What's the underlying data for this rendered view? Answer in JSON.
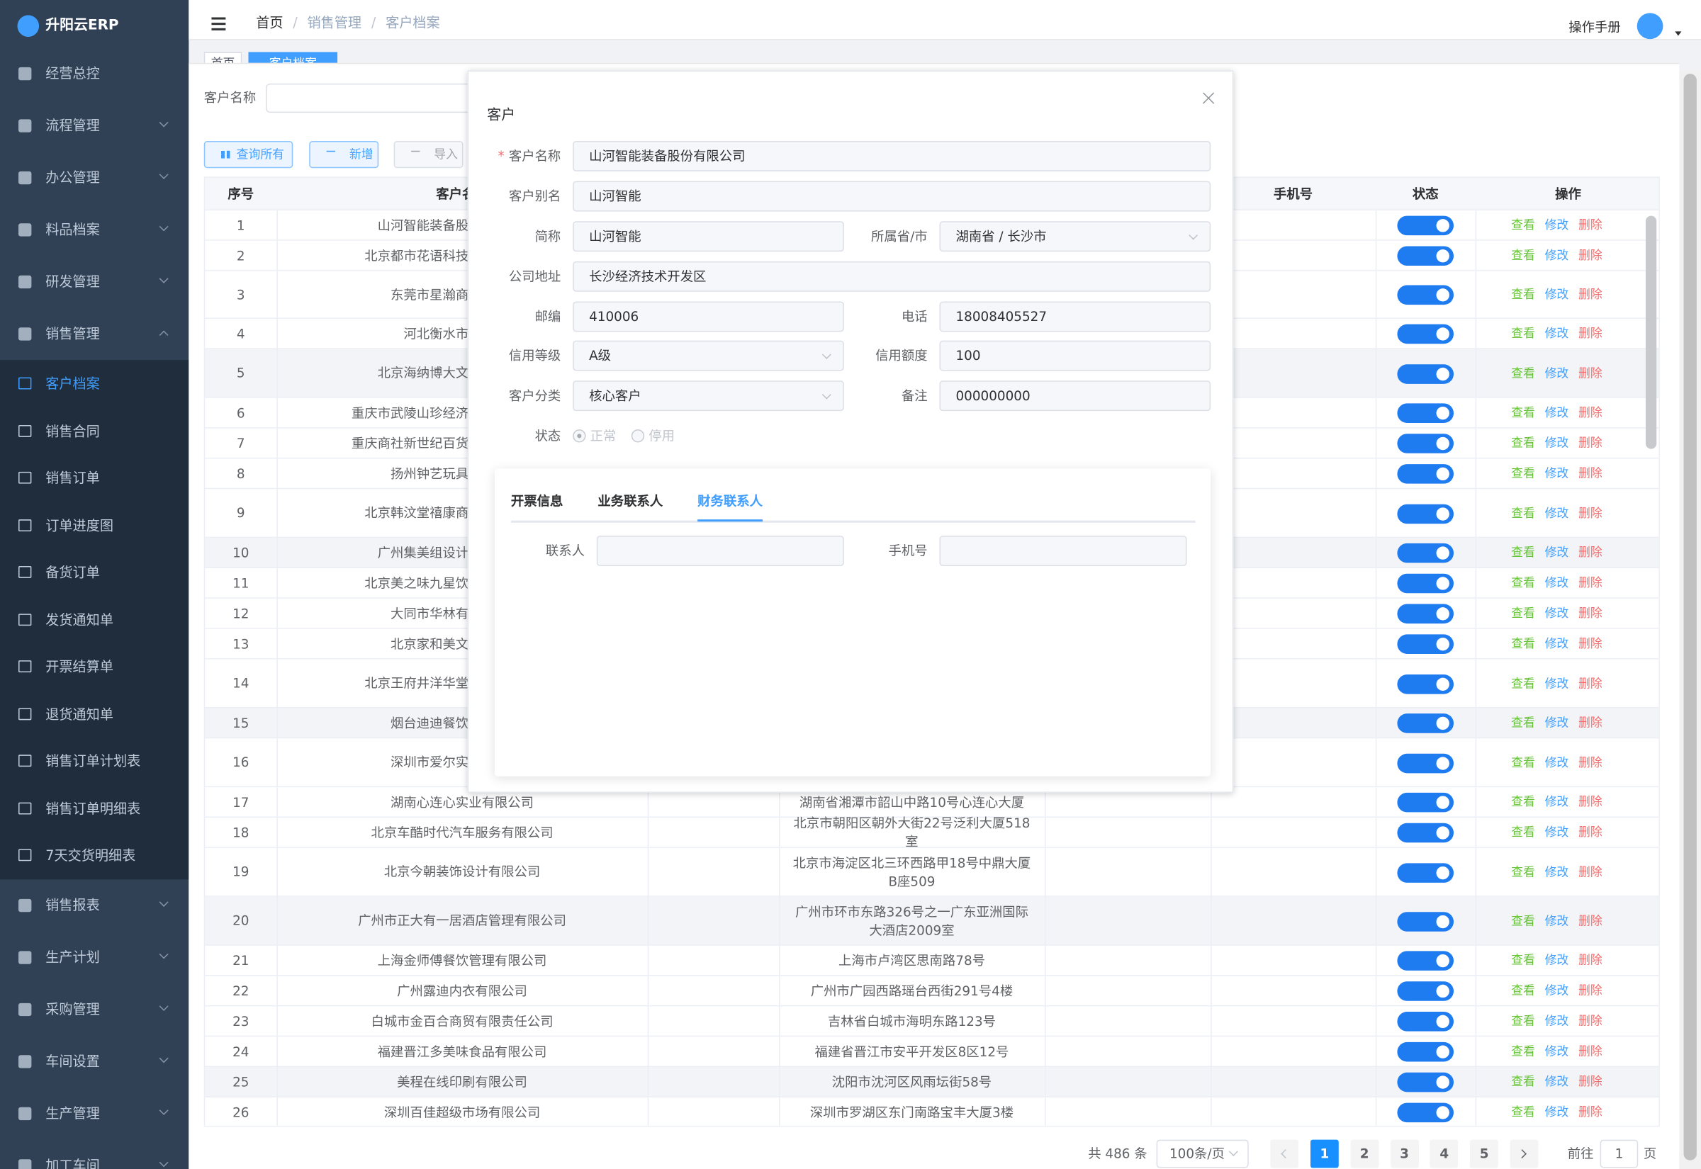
{
  "app_name": "升阳云ERP",
  "sidebar": {
    "items": [
      {
        "label": "经营总控"
      },
      {
        "label": "流程管理",
        "expandable": true
      },
      {
        "label": "办公管理",
        "expandable": true
      },
      {
        "label": "料品档案",
        "expandable": true
      },
      {
        "label": "研发管理",
        "expandable": true
      },
      {
        "label": "销售管理",
        "expandable": true,
        "expanded": true,
        "children": [
          {
            "label": "客户档案",
            "active": true
          },
          {
            "label": "销售合同"
          },
          {
            "label": "销售订单"
          },
          {
            "label": "订单进度图"
          },
          {
            "label": "备货订单"
          },
          {
            "label": "发货通知单"
          },
          {
            "label": "开票结算单"
          },
          {
            "label": "退货通知单"
          },
          {
            "label": "销售订单计划表"
          },
          {
            "label": "销售订单明细表"
          },
          {
            "label": "7天交货明细表"
          }
        ]
      },
      {
        "label": "销售报表",
        "expandable": true
      },
      {
        "label": "生产计划",
        "expandable": true
      },
      {
        "label": "采购管理",
        "expandable": true
      },
      {
        "label": "车间设置",
        "expandable": true
      },
      {
        "label": "生产管理",
        "expandable": true
      },
      {
        "label": "加工车间",
        "expandable": true
      }
    ]
  },
  "header": {
    "breadcrumb": [
      "首页",
      "销售管理",
      "客户档案"
    ],
    "manual": "操作手册"
  },
  "tabs": [
    "首页",
    "客户档案"
  ],
  "search": {
    "label": "客户名称",
    "buttons": [
      "查询所有",
      "新增",
      "导入"
    ]
  },
  "table": {
    "headers": [
      "序号",
      "客户名称",
      "手机号",
      "状态",
      "操作"
    ],
    "actions": [
      "查看",
      "修改",
      "删除"
    ],
    "rows": [
      {
        "index": 1,
        "name": "山河智能装备股"
      },
      {
        "index": 2,
        "name": "北京都市花语科技"
      },
      {
        "index": 3,
        "name": "东莞市星瀚商"
      },
      {
        "index": 4,
        "name": "河北衡水市"
      },
      {
        "index": 5,
        "name": "北京海纳博大文"
      },
      {
        "index": 6,
        "name": "重庆市武陵山珍经济"
      },
      {
        "index": 7,
        "name": "重庆商社新世纪百货"
      },
      {
        "index": 8,
        "name": "扬州钟艺玩具"
      },
      {
        "index": 9,
        "name": "北京韩汶堂禧康商"
      },
      {
        "index": 10,
        "name": "广州集美组设计"
      },
      {
        "index": 11,
        "name": "北京美之味九星饮"
      },
      {
        "index": 12,
        "name": "大同市华林有"
      },
      {
        "index": 13,
        "name": "北京家和美文"
      },
      {
        "index": 14,
        "name": "北京王府井洋华堂"
      },
      {
        "index": 15,
        "name": "烟台迪迪餐饮"
      },
      {
        "index": 16,
        "name": "深圳市爱尔实"
      },
      {
        "index": 17,
        "name": "湖南心连心实业有限公司",
        "address": "湖南省湘潭市韶山中路10号心连心大厦"
      },
      {
        "index": 18,
        "name": "北京车酷时代汽车服务有限公司",
        "address": "北京市朝阳区朝外大街22号泛利大厦518室"
      },
      {
        "index": 19,
        "name": "北京今朝装饰设计有限公司",
        "address": "北京市海淀区北三环西路甲18号中鼎大厦B座509"
      },
      {
        "index": 20,
        "name": "广州市正大有一居酒店管理有限公司",
        "address": "广州市环市东路326号之一广东亚洲国际大酒店2009室"
      },
      {
        "index": 21,
        "name": "上海金师傅餐饮管理有限公司",
        "address": "上海市卢湾区思南路78号"
      },
      {
        "index": 22,
        "name": "广州露迪内衣有限公司",
        "address": "广州市广园西路瑶台西街291号4楼"
      },
      {
        "index": 23,
        "name": "白城市金百合商贸有限责任公司",
        "address": "吉林省白城市海明东路123号"
      },
      {
        "index": 24,
        "name": "福建晋江多美味食品有限公司",
        "address": "福建省晋江市安平开发区8区12号"
      },
      {
        "index": 25,
        "name": "美程在线印刷有限公司",
        "address": "沈阳市沈河区风雨坛街58号"
      },
      {
        "index": 26,
        "name": "深圳百佳超级市场有限公司",
        "address": "深圳市罗湖区东门南路宝丰大厦3楼"
      }
    ]
  },
  "pagination": {
    "total": "共 486 条",
    "page_size": "100条/页",
    "pages": [
      1,
      2,
      3,
      4,
      5
    ],
    "current": 1,
    "goto_label": "前往",
    "goto_value": "1",
    "goto_suffix": "页"
  },
  "modal": {
    "title": "客户",
    "fields": [
      [
        {
          "label": "客户名称",
          "value": "山河智能装备股份有限公司",
          "required": true
        }
      ],
      [
        {
          "label": "客户别名",
          "value": "山河智能"
        }
      ],
      [
        {
          "label": "简称",
          "value": "山河智能"
        },
        {
          "label": "所属省/市",
          "value": "湖南省 / 长沙市",
          "select": true
        }
      ],
      [
        {
          "label": "公司地址",
          "value": "长沙经济技术开发区"
        }
      ],
      [
        {
          "label": "邮编",
          "value": "410006"
        },
        {
          "label": "电话",
          "value": "18008405527"
        }
      ],
      [
        {
          "label": "信用等级",
          "value": "A级",
          "select": true
        },
        {
          "label": "信用额度",
          "value": "100"
        }
      ],
      [
        {
          "label": "客户分类",
          "value": "核心客户",
          "select": true
        },
        {
          "label": "备注",
          "value": "000000000"
        }
      ]
    ],
    "status": {
      "label": "状态",
      "options": [
        "正常",
        "停用"
      ],
      "selected": 0
    },
    "tabs": [
      "开票信息",
      "业务联系人",
      "财务联系人"
    ],
    "active_tab": 2,
    "contact_fields": [
      {
        "label": "联系人"
      },
      {
        "label": "手机号"
      }
    ]
  }
}
